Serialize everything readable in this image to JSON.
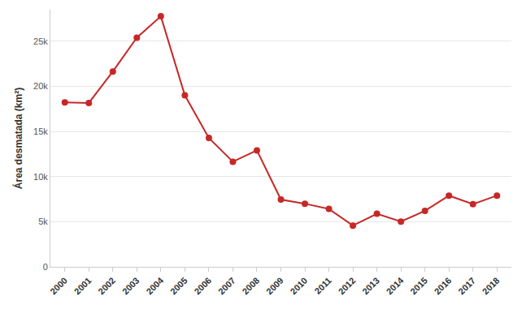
{
  "chart_data": {
    "type": "line",
    "y_label": "Área desmatada (km²)",
    "categories": [
      "2000",
      "2001",
      "2002",
      "2003",
      "2004",
      "2005",
      "2006",
      "2007",
      "2008",
      "2009",
      "2010",
      "2011",
      "2012",
      "2013",
      "2014",
      "2015",
      "2016",
      "2017",
      "2018"
    ],
    "values": [
      18226,
      18165,
      21651,
      25396,
      27772,
      19014,
      14286,
      11651,
      12911,
      7464,
      7000,
      6418,
      4571,
      5891,
      5012,
      6207,
      7893,
      6947,
      7900
    ],
    "color": "#c62828",
    "marker": "circle",
    "ylim": [
      0,
      28500
    ],
    "yticks": [
      0,
      {
        "value": 5000,
        "label": "5k"
      },
      {
        "value": 10000,
        "label": "10k"
      },
      {
        "value": 15000,
        "label": "15k"
      },
      {
        "value": 20000,
        "label": "20k"
      },
      {
        "value": 25000,
        "label": "25k"
      }
    ],
    "grid": true
  }
}
